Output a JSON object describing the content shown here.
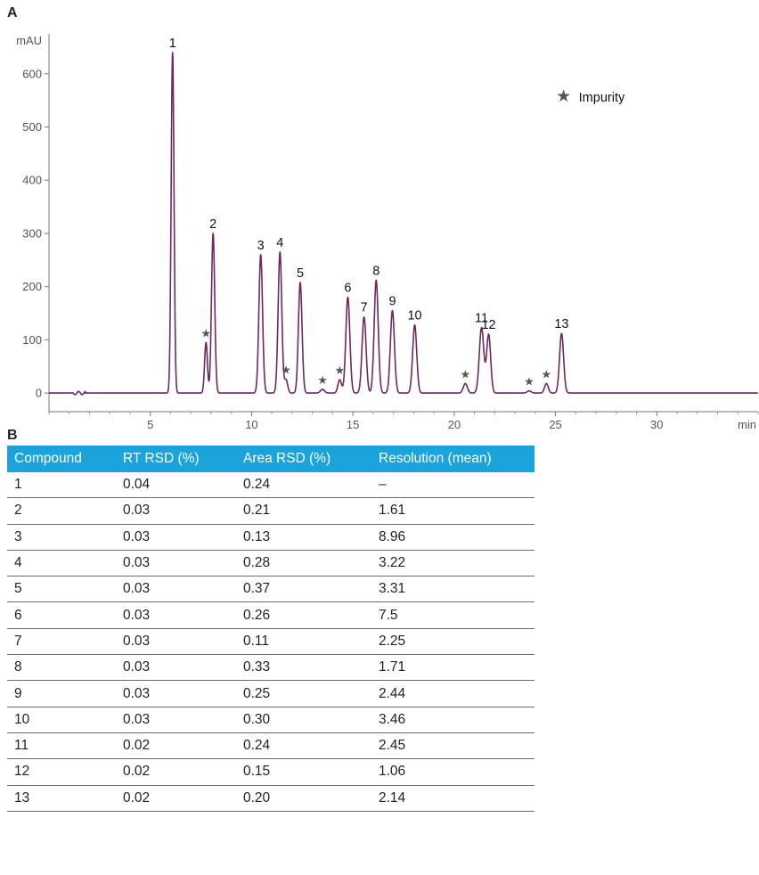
{
  "panel_a": {
    "label": "A"
  },
  "panel_b": {
    "label": "B"
  },
  "chart_data": {
    "type": "line",
    "xlabel": "min",
    "ylabel": "mAU",
    "xlim": [
      0,
      35
    ],
    "ylim": [
      -35,
      675
    ],
    "xticks": [
      5,
      10,
      15,
      20,
      25,
      30
    ],
    "yticks": [
      0,
      100,
      200,
      300,
      400,
      500,
      600
    ],
    "grid": false,
    "line_color": "#6b2a5e",
    "legend": {
      "symbol": "★",
      "label": "Impurity",
      "position": "top-right"
    },
    "peaks": [
      {
        "label": "1",
        "rt": 6.1,
        "height": 640,
        "width": 0.07
      },
      {
        "label": "2",
        "rt": 8.1,
        "height": 300,
        "width": 0.08
      },
      {
        "label": "3",
        "rt": 10.45,
        "height": 260,
        "width": 0.09
      },
      {
        "label": "4",
        "rt": 11.4,
        "height": 265,
        "width": 0.09
      },
      {
        "label": "5",
        "rt": 12.4,
        "height": 208,
        "width": 0.09
      },
      {
        "label": "6",
        "rt": 14.75,
        "height": 180,
        "width": 0.1
      },
      {
        "label": "7",
        "rt": 15.55,
        "height": 143,
        "width": 0.1
      },
      {
        "label": "8",
        "rt": 16.15,
        "height": 212,
        "width": 0.1
      },
      {
        "label": "9",
        "rt": 16.95,
        "height": 155,
        "width": 0.1
      },
      {
        "label": "10",
        "rt": 18.05,
        "height": 128,
        "width": 0.1
      },
      {
        "label": "11",
        "rt": 21.35,
        "height": 123,
        "width": 0.11
      },
      {
        "label": "12",
        "rt": 21.7,
        "height": 110,
        "width": 0.1
      },
      {
        "label": "13",
        "rt": 25.3,
        "height": 112,
        "width": 0.1
      }
    ],
    "impurities": [
      {
        "rt": 7.75,
        "height": 95,
        "width": 0.07
      },
      {
        "rt": 11.7,
        "height": 25,
        "width": 0.08
      },
      {
        "rt": 13.5,
        "height": 7,
        "width": 0.1
      },
      {
        "rt": 14.35,
        "height": 25,
        "width": 0.09
      },
      {
        "rt": 20.55,
        "height": 18,
        "width": 0.1
      },
      {
        "rt": 23.7,
        "height": 4,
        "width": 0.1
      },
      {
        "rt": 24.55,
        "height": 18,
        "width": 0.09
      }
    ]
  },
  "table": {
    "headers": [
      "Compound",
      "RT RSD (%)",
      "Area RSD (%)",
      "Resolution (mean)"
    ],
    "header_color": "#1ba3dc",
    "rows": [
      [
        "1",
        "0.04",
        "0.24",
        "–"
      ],
      [
        "2",
        "0.03",
        "0.21",
        "1.61"
      ],
      [
        "3",
        "0.03",
        "0.13",
        "8.96"
      ],
      [
        "4",
        "0.03",
        "0.28",
        "3.22"
      ],
      [
        "5",
        "0.03",
        "0.37",
        "3.31"
      ],
      [
        "6",
        "0.03",
        "0.26",
        "7.5"
      ],
      [
        "7",
        "0.03",
        "0.11",
        "2.25"
      ],
      [
        "8",
        "0.03",
        "0.33",
        "1.71"
      ],
      [
        "9",
        "0.03",
        "0.25",
        "2.44"
      ],
      [
        "10",
        "0.03",
        "0.30",
        "3.46"
      ],
      [
        "11",
        "0.02",
        "0.24",
        "2.45"
      ],
      [
        "12",
        "0.02",
        "0.15",
        "1.06"
      ],
      [
        "13",
        "0.02",
        "0.20",
        "2.14"
      ]
    ]
  }
}
